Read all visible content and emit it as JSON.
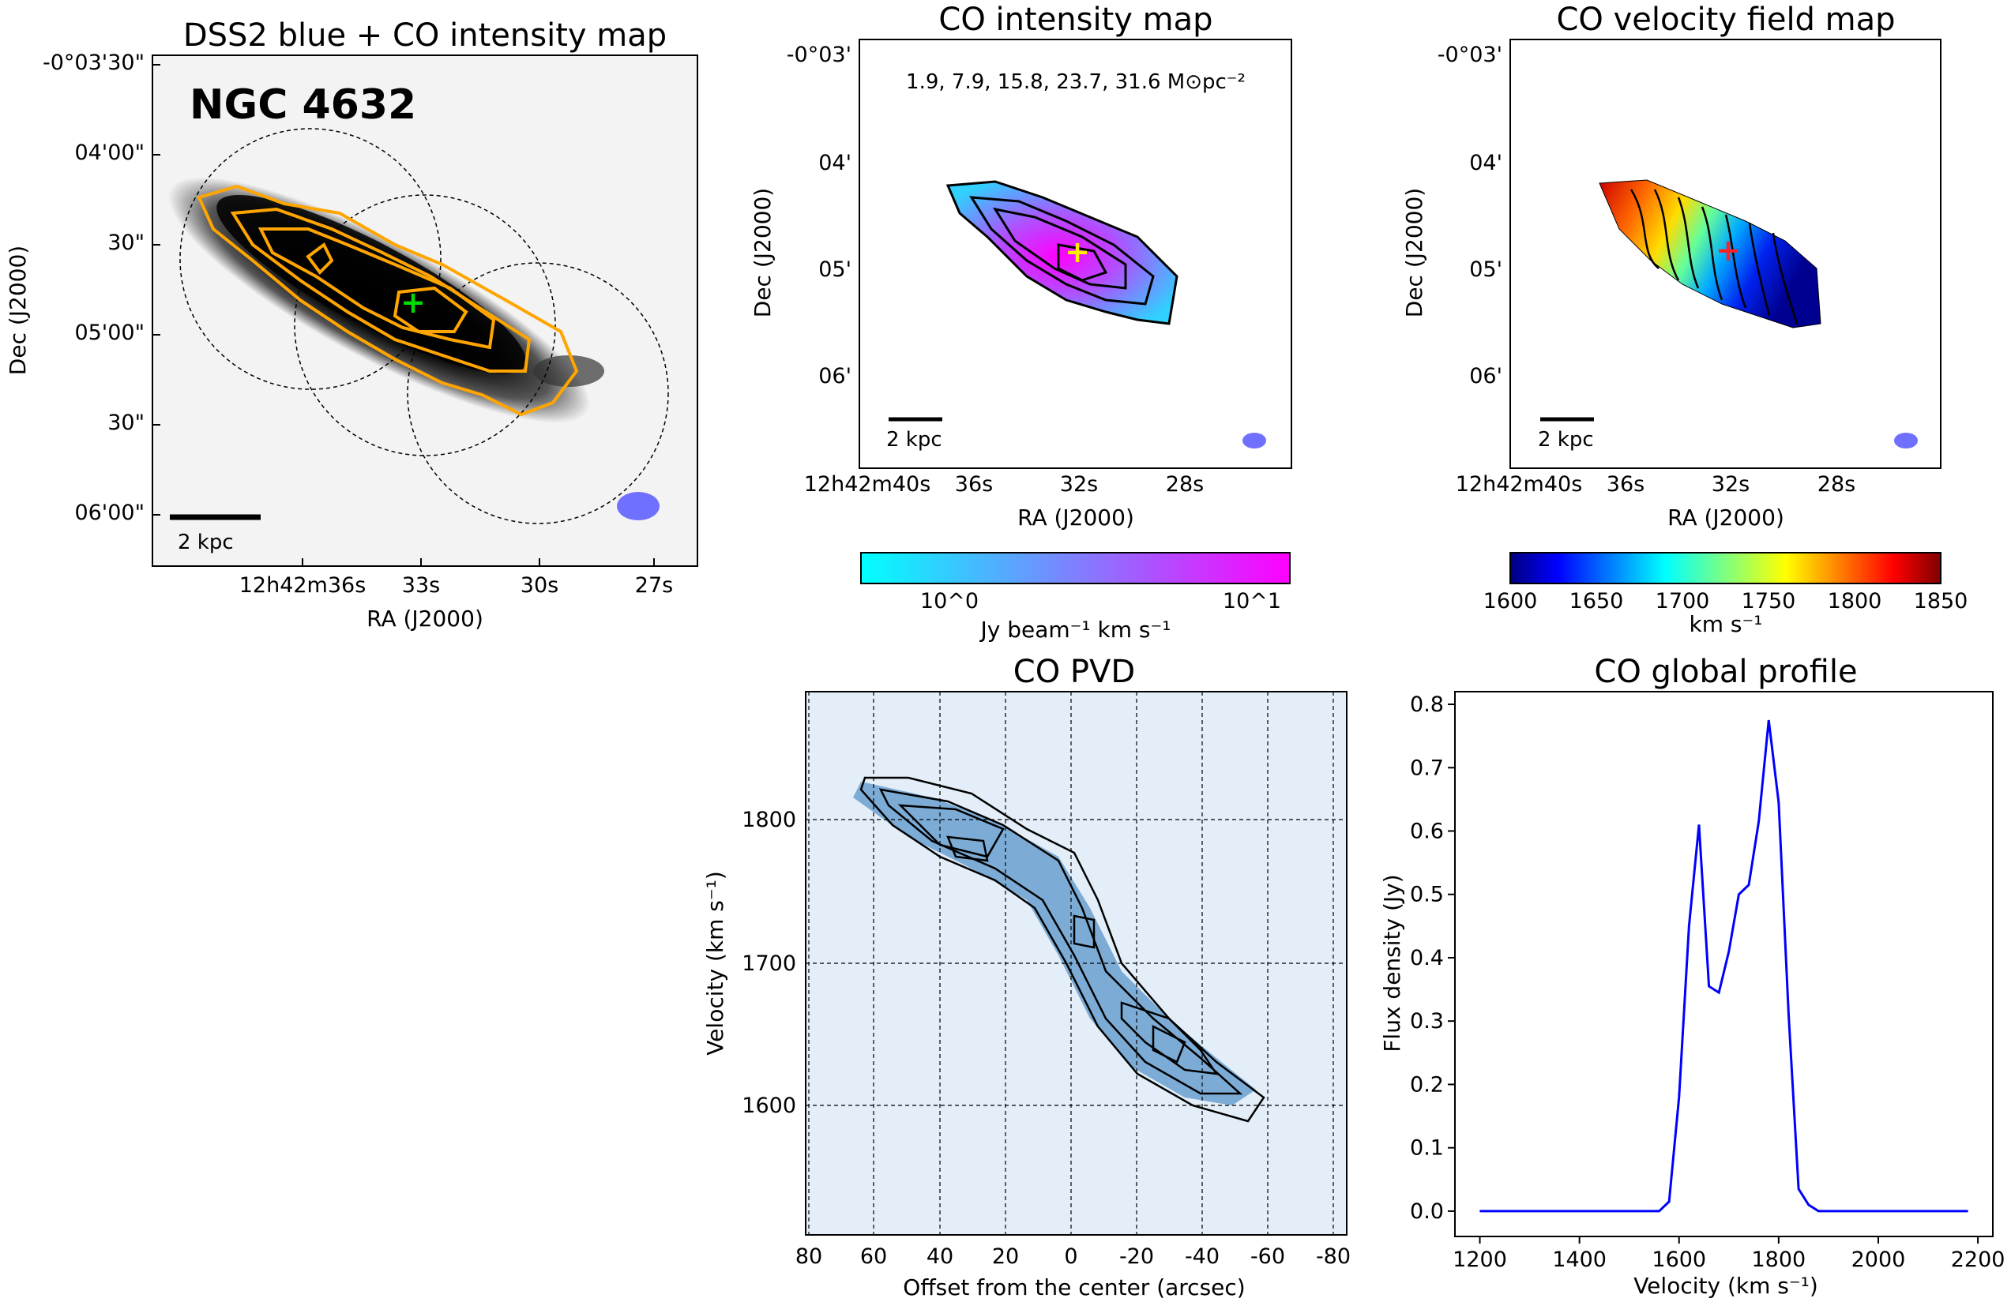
{
  "panel_dss": {
    "title": "DSS2 blue + CO intensity map",
    "galaxy": "NGC 4632",
    "scalebar": "2 kpc",
    "xlabel": "RA (J2000)",
    "ylabel": "Dec (J2000)",
    "xticks": [
      "12h42m36s",
      "33s",
      "30s",
      "27s"
    ],
    "yticks": [
      "-0°03'30\"",
      "04'00\"",
      "30\"",
      "05'00\"",
      "30\"",
      "06'00\""
    ]
  },
  "panel_mom0": {
    "title": "CO intensity map",
    "levels_text": "1.9, 7.9, 15.8, 23.7, 31.6 M⊙pc⁻²",
    "scalebar": "2 kpc",
    "xlabel": "RA (J2000)",
    "ylabel": "Dec (J2000)",
    "xticks": [
      "12h42m40s",
      "36s",
      "32s",
      "28s"
    ],
    "yticks": [
      "-0°03'",
      "04'",
      "05'",
      "06'"
    ],
    "colorbar": {
      "label": "Jy beam⁻¹ km s⁻¹",
      "ticks": [
        "10^0",
        "10^1"
      ],
      "cmap": [
        "#00ffff",
        "#ff00ff"
      ]
    }
  },
  "panel_mom1": {
    "title": "CO velocity field map",
    "scalebar": "2 kpc",
    "xlabel": "RA (J2000)",
    "ylabel": "Dec (J2000)",
    "xticks": [
      "12h42m40s",
      "36s",
      "32s",
      "28s"
    ],
    "yticks": [
      "-0°03'",
      "04'",
      "05'",
      "06'"
    ],
    "colorbar": {
      "label": "km s⁻¹",
      "ticks": [
        "1600",
        "1650",
        "1700",
        "1750",
        "1800",
        "1850"
      ],
      "cmap": "jet"
    }
  },
  "panel_pvd": {
    "title": "CO PVD",
    "xlabel": "Offset from the center (arcsec)",
    "ylabel": "Velocity (km s⁻¹)",
    "xticks": [
      "80",
      "60",
      "40",
      "20",
      "0",
      "-20",
      "-40",
      "-60",
      "-80"
    ],
    "yticks": [
      "1800",
      "1700",
      "1600"
    ]
  },
  "chart_data": [
    {
      "type": "line",
      "title": "CO global profile",
      "xlabel": "Velocity (km s⁻¹)",
      "ylabel": "Flux density (Jy)",
      "xlim": [
        1150,
        2230
      ],
      "ylim": [
        -0.04,
        0.82
      ],
      "xticks": [
        1200,
        1400,
        1600,
        1800,
        2000,
        2200
      ],
      "yticks": [
        0.0,
        0.1,
        0.2,
        0.3,
        0.4,
        0.5,
        0.6,
        0.7,
        0.8
      ],
      "color": "#0000ff",
      "x": [
        1200,
        1560,
        1580,
        1600,
        1620,
        1640,
        1660,
        1680,
        1700,
        1720,
        1740,
        1760,
        1780,
        1800,
        1820,
        1840,
        1860,
        1880,
        2180
      ],
      "y": [
        0.0,
        0.0,
        0.015,
        0.18,
        0.45,
        0.61,
        0.355,
        0.345,
        0.41,
        0.5,
        0.515,
        0.615,
        0.775,
        0.645,
        0.31,
        0.035,
        0.01,
        0.0,
        0.0
      ]
    }
  ]
}
